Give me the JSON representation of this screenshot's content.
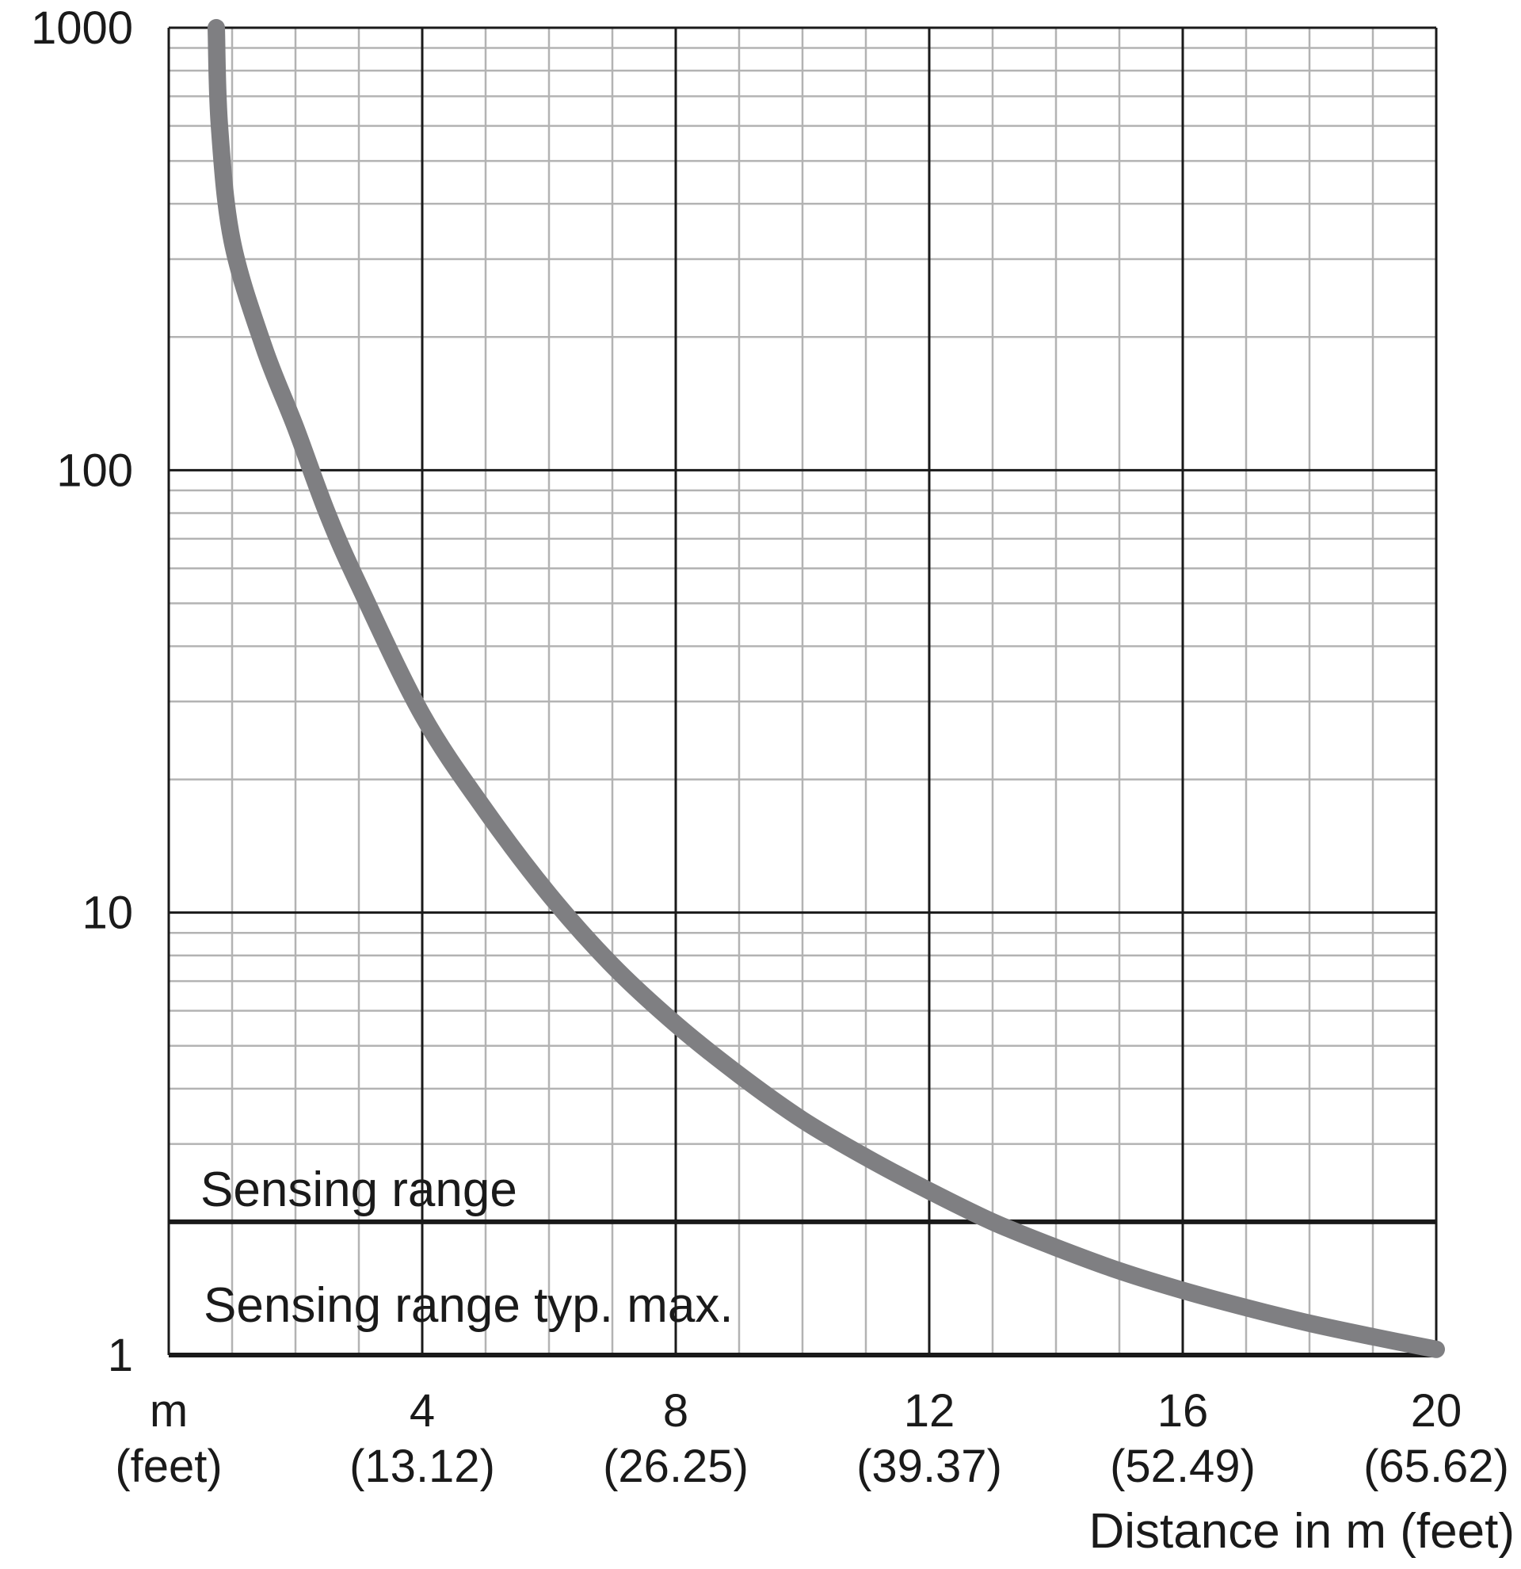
{
  "chart_data": {
    "type": "line",
    "title": "",
    "xlabel": "Distance in m (feet)",
    "ylabel": "",
    "x_unit_label": "m",
    "x_unit_label_secondary": "(feet)",
    "xlim": [
      0,
      20
    ],
    "ylim": [
      1,
      1000
    ],
    "y_scale": "log",
    "grid": true,
    "x_ticks": [
      {
        "value": 4,
        "label": "4",
        "sublabel": "(13.12)"
      },
      {
        "value": 8,
        "label": "8",
        "sublabel": "(26.25)"
      },
      {
        "value": 12,
        "label": "12",
        "sublabel": "(39.37)"
      },
      {
        "value": 16,
        "label": "16",
        "sublabel": "(52.49)"
      },
      {
        "value": 20,
        "label": "20",
        "sublabel": "(65.62)"
      }
    ],
    "y_ticks": [
      {
        "value": 1,
        "label": "1"
      },
      {
        "value": 10,
        "label": "10"
      },
      {
        "value": 100,
        "label": "100"
      },
      {
        "value": 1000,
        "label": "1000"
      }
    ],
    "series": [
      {
        "color": "#7f7f82",
        "x": [
          0.75,
          0.8,
          1.0,
          1.5,
          2.0,
          2.5,
          3.0,
          4.0,
          5.0,
          6.0,
          7.0,
          8.0,
          9.0,
          10.0,
          11.0,
          12.0,
          13.0,
          14.0,
          15.0,
          16.0,
          17.0,
          18.0,
          19.0,
          20.0
        ],
        "y": [
          1000,
          600,
          330,
          190,
          125,
          80,
          55,
          28,
          17,
          11,
          7.6,
          5.6,
          4.3,
          3.4,
          2.8,
          2.35,
          2.0,
          1.75,
          1.55,
          1.4,
          1.28,
          1.18,
          1.1,
          1.03
        ]
      }
    ],
    "threshold_lines": [
      {
        "y": 2,
        "label": "Sensing range"
      },
      {
        "y": 1,
        "label": "Sensing range typ. max."
      }
    ],
    "colors": {
      "major_grid": "#1a1a1a",
      "minor_grid": "#b3b3b3",
      "curve": "#7f7f82",
      "threshold": "#1a1a1a"
    }
  }
}
